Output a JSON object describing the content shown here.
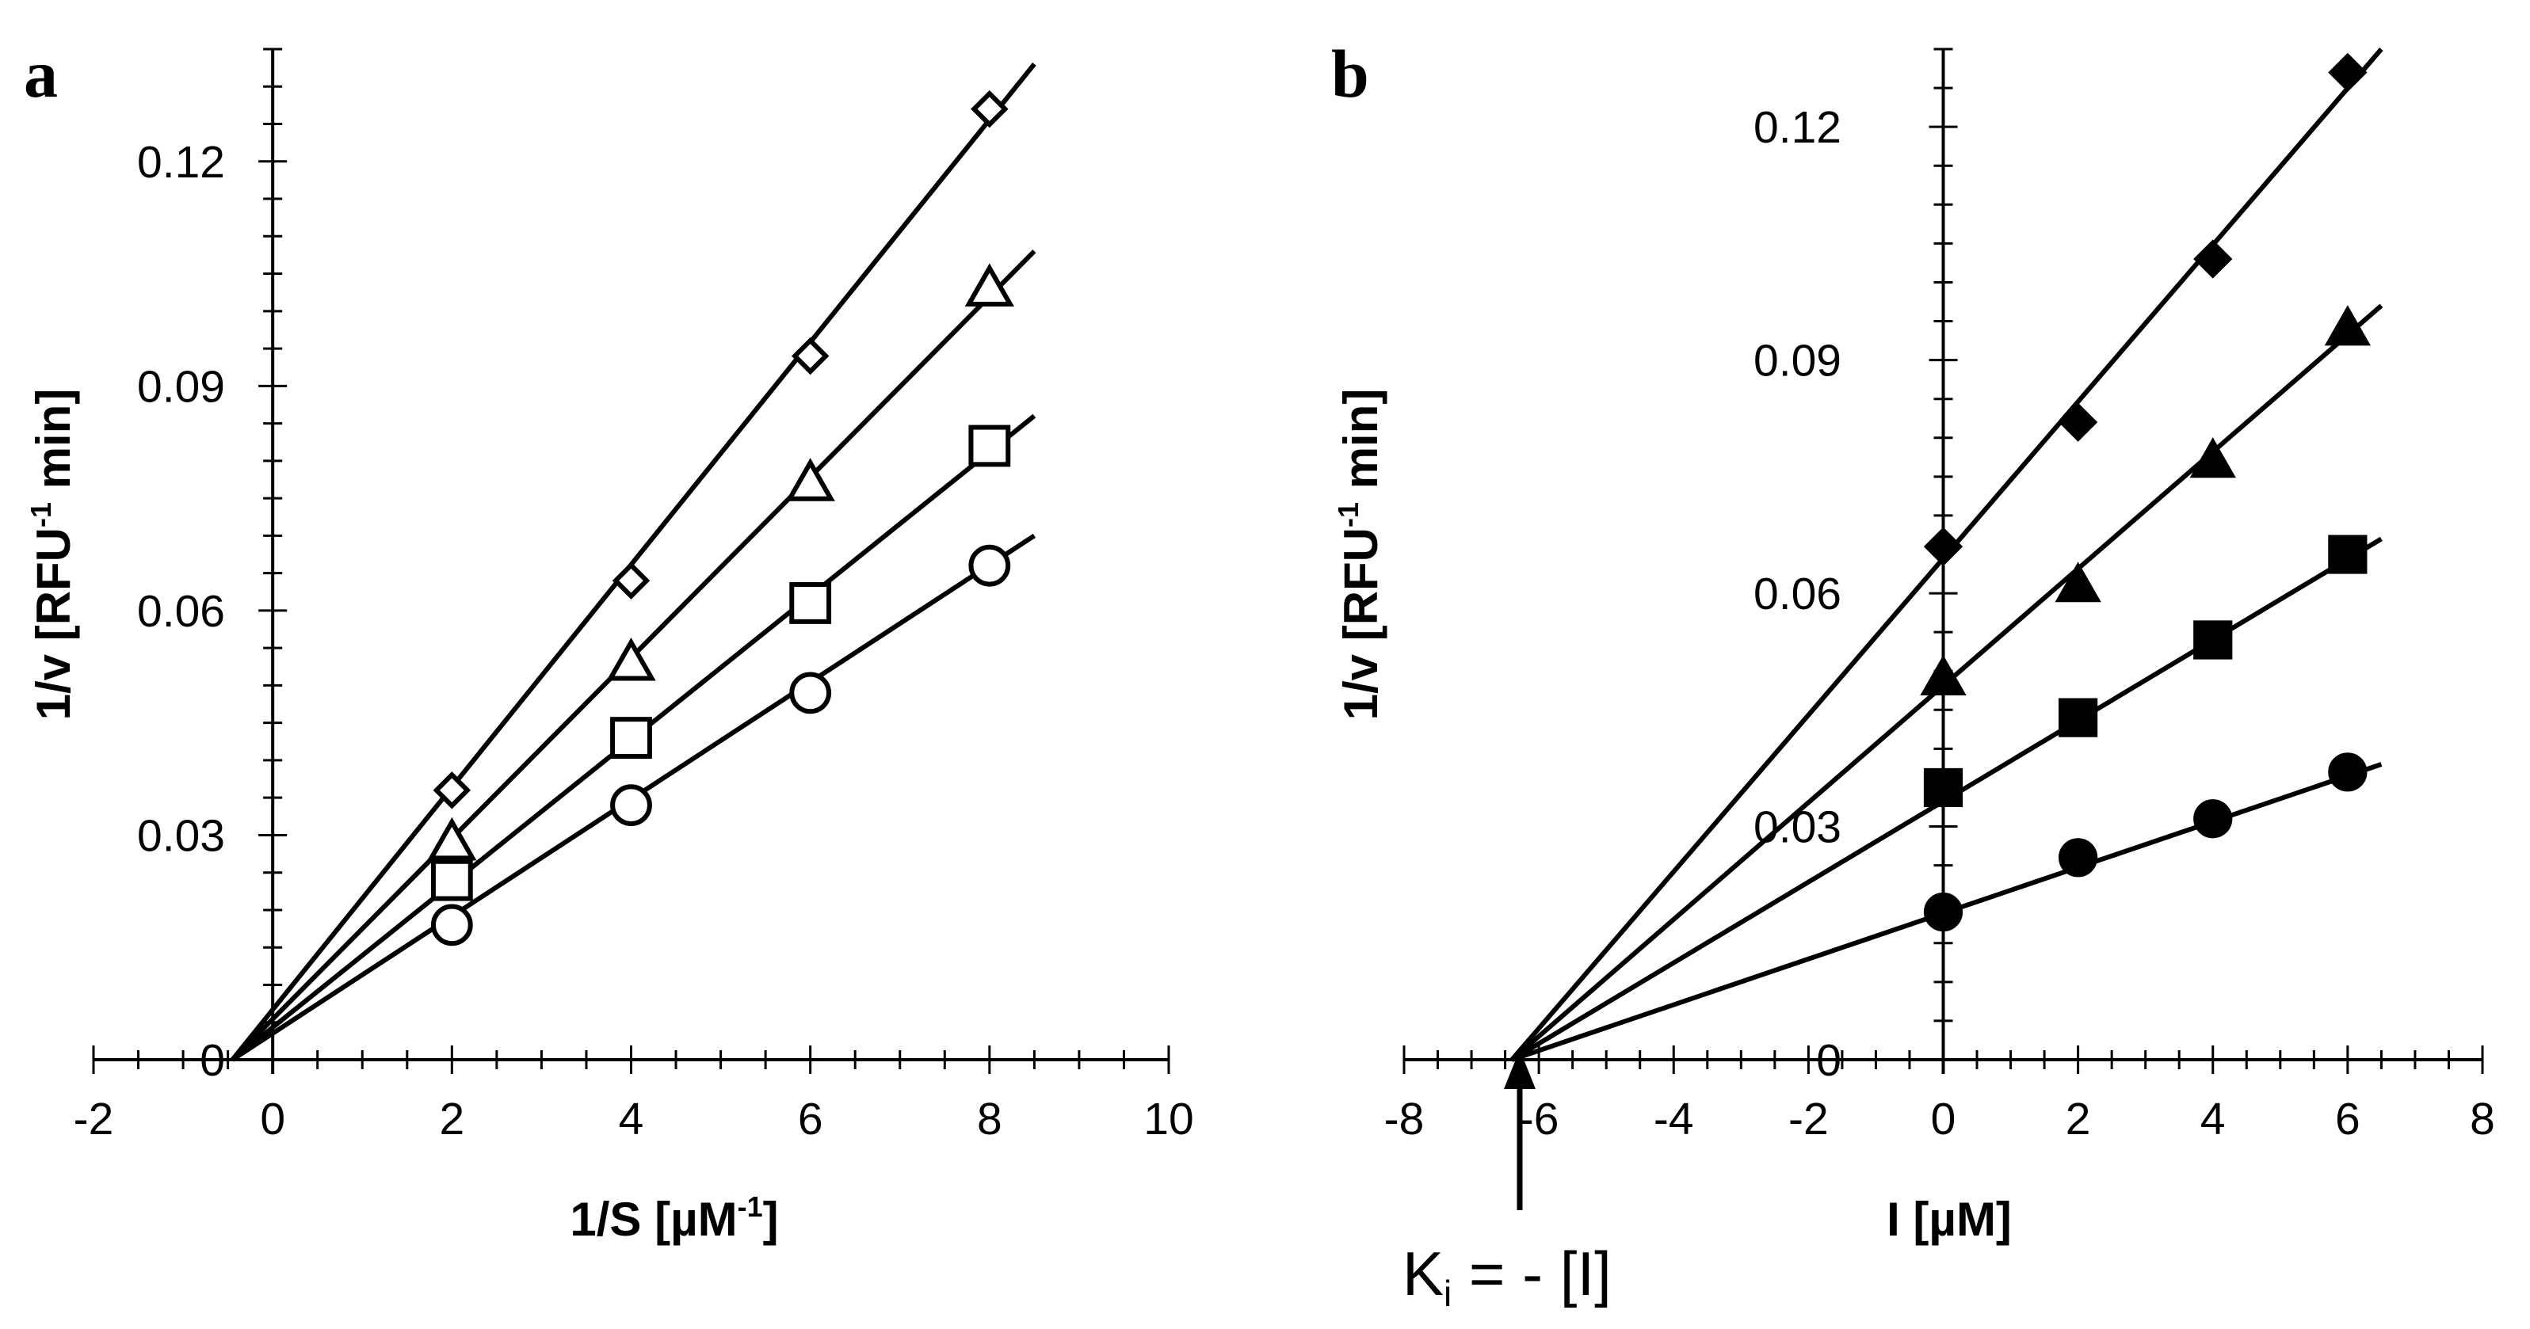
{
  "chart_data": [
    {
      "panel": "a",
      "type": "line",
      "title": "",
      "xlabel": "1/S [µM",
      "xlabel_sup": "-1",
      "xlabel_end": "]",
      "ylabel": "1/v [RFU",
      "ylabel_sup": "-1",
      "ylabel_end": " min]",
      "xlim": [
        -2,
        10
      ],
      "ylim": [
        0,
        0.135
      ],
      "xticks": [
        "-2",
        "0",
        "2",
        "4",
        "6",
        "8",
        "10"
      ],
      "xtick_values": [
        -2,
        0,
        2,
        4,
        6,
        8,
        10
      ],
      "yticks": [
        "0",
        "0.03",
        "0.06",
        "0.09",
        "0.12"
      ],
      "ytick_values": [
        0,
        0.03,
        0.06,
        0.09,
        0.12
      ],
      "series": [
        {
          "name": "diamond",
          "marker": "diamond-open",
          "x": [
            2,
            4,
            6,
            8
          ],
          "y": [
            0.036,
            0.064,
            0.094,
            0.127
          ],
          "fit": [
            [
              -0.45,
              0
            ],
            [
              8.5,
              0.133
            ]
          ]
        },
        {
          "name": "triangle",
          "marker": "triangle-open",
          "x": [
            2,
            4,
            6,
            8
          ],
          "y": [
            0.029,
            0.053,
            0.077,
            0.103
          ],
          "fit": [
            [
              -0.45,
              0
            ],
            [
              8.5,
              0.108
            ]
          ]
        },
        {
          "name": "square",
          "marker": "square-open",
          "x": [
            2,
            4,
            6,
            8
          ],
          "y": [
            0.024,
            0.043,
            0.061,
            0.082
          ],
          "fit": [
            [
              -0.45,
              0
            ],
            [
              8.5,
              0.086
            ]
          ]
        },
        {
          "name": "circle",
          "marker": "circle-open",
          "x": [
            2,
            4,
            6,
            8
          ],
          "y": [
            0.018,
            0.034,
            0.049,
            0.066
          ],
          "fit": [
            [
              -0.45,
              0
            ],
            [
              8.5,
              0.07
            ]
          ]
        }
      ]
    },
    {
      "panel": "b",
      "type": "line",
      "title": "",
      "xlabel": "I [µM]",
      "ylabel": "1/v [RFU",
      "ylabel_sup": "-1",
      "ylabel_end": " min]",
      "xlim": [
        -8,
        8
      ],
      "ylim": [
        0,
        0.13
      ],
      "xticks": [
        "-8",
        "-6",
        "-4",
        "-2",
        "0",
        "2",
        "4",
        "6",
        "8"
      ],
      "xtick_values": [
        -8,
        -6,
        -4,
        -2,
        0,
        2,
        4,
        6,
        8
      ],
      "yticks": [
        "0",
        "0.03",
        "0.06",
        "0.09",
        "0.12"
      ],
      "ytick_values": [
        0,
        0.03,
        0.06,
        0.09,
        0.12
      ],
      "series": [
        {
          "name": "diamond",
          "marker": "diamond-filled",
          "x": [
            0,
            2,
            4,
            6
          ],
          "y": [
            0.066,
            0.082,
            0.103,
            0.127
          ],
          "fit": [
            [
              -6.4,
              0
            ],
            [
              6.5,
              0.13
            ]
          ]
        },
        {
          "name": "triangle",
          "marker": "triangle-filled",
          "x": [
            0,
            2,
            4,
            6
          ],
          "y": [
            0.049,
            0.061,
            0.077,
            0.094
          ],
          "fit": [
            [
              -6.4,
              0
            ],
            [
              6.5,
              0.097
            ]
          ]
        },
        {
          "name": "square",
          "marker": "square-filled",
          "x": [
            0,
            2,
            4,
            6
          ],
          "y": [
            0.035,
            0.044,
            0.054,
            0.065
          ],
          "fit": [
            [
              -6.4,
              0
            ],
            [
              6.5,
              0.067
            ]
          ]
        },
        {
          "name": "circle",
          "marker": "circle-filled",
          "x": [
            0,
            2,
            4,
            6
          ],
          "y": [
            0.019,
            0.026,
            0.031,
            0.037
          ],
          "fit": [
            [
              -6.4,
              0
            ],
            [
              6.5,
              0.038
            ]
          ]
        }
      ],
      "annotation": {
        "x": -6.4,
        "text_main": "K",
        "text_sub": "i",
        "text_rest": " = - [I]"
      }
    }
  ]
}
